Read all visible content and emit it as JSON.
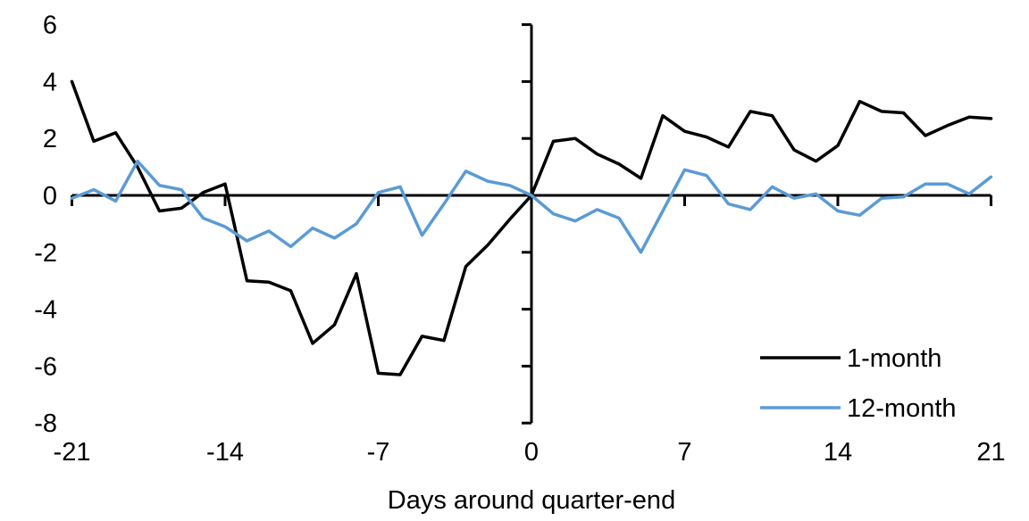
{
  "chart_data": {
    "type": "line",
    "title": "",
    "xlabel": "Days around quarter-end",
    "ylabel": "",
    "xlim": [
      -21,
      21
    ],
    "ylim": [
      -8,
      6
    ],
    "grid": false,
    "legend_position": "right-middle",
    "x_ticks": [
      -21,
      -14,
      -7,
      0,
      7,
      14,
      21
    ],
    "y_ticks": [
      6,
      4,
      2,
      0,
      -2,
      -4,
      -6,
      -8
    ],
    "x": [
      -21,
      -20,
      -19,
      -18,
      -17,
      -16,
      -15,
      -14,
      -13,
      -12,
      -11,
      -10,
      -9,
      -8,
      -7,
      -6,
      -5,
      -4,
      -3,
      -2,
      -1,
      0,
      1,
      2,
      3,
      4,
      5,
      6,
      7,
      8,
      9,
      10,
      11,
      12,
      13,
      14,
      15,
      16,
      17,
      18,
      19,
      20,
      21
    ],
    "series": [
      {
        "name": "1-month",
        "color": "#000000",
        "values": [
          4.0,
          1.9,
          2.2,
          1.0,
          -0.55,
          -0.45,
          0.1,
          0.4,
          -3.0,
          -3.05,
          -3.35,
          -5.2,
          -4.55,
          -2.75,
          -6.25,
          -6.3,
          -4.95,
          -5.1,
          -2.5,
          -1.75,
          -0.85,
          0,
          1.9,
          2.0,
          1.45,
          1.1,
          0.6,
          2.8,
          2.25,
          2.05,
          1.7,
          2.95,
          2.8,
          1.6,
          1.2,
          1.75,
          3.3,
          2.95,
          2.9,
          2.1,
          2.45,
          2.75,
          2.7
        ]
      },
      {
        "name": "12-month",
        "color": "#5B9BD5",
        "values": [
          -0.1,
          0.2,
          -0.2,
          1.2,
          0.35,
          0.2,
          -0.8,
          -1.1,
          -1.6,
          -1.25,
          -1.8,
          -1.15,
          -1.5,
          -1.0,
          0.1,
          0.3,
          -1.4,
          -0.3,
          0.85,
          0.5,
          0.35,
          0,
          -0.65,
          -0.9,
          -0.5,
          -0.8,
          -2.0,
          -0.55,
          0.9,
          0.7,
          -0.3,
          -0.5,
          0.3,
          -0.1,
          0.05,
          -0.55,
          -0.7,
          -0.1,
          -0.05,
          0.4,
          0.4,
          0.05,
          0.65
        ]
      }
    ]
  }
}
